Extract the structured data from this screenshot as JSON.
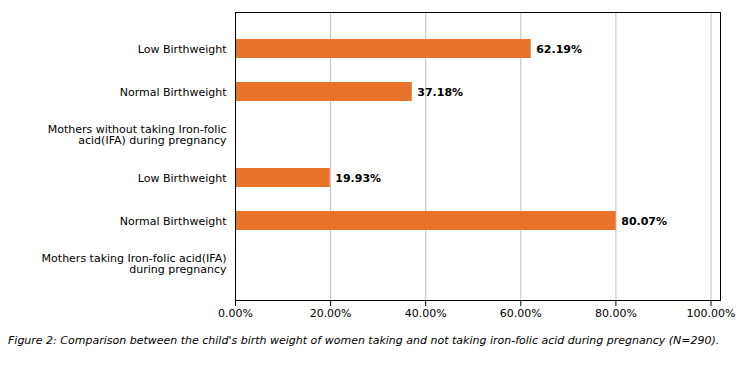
{
  "chart_data": {
    "type": "bar",
    "orientation": "horizontal",
    "caption": "Figure 2: Comparison between the child's birth weight of women taking and not taking iron-folic acid during pregnancy (N=290).",
    "categories": [
      "Mothers taking Iron-folic acid(IFA)\nduring pregnancy",
      "Normal Birthweight",
      "Low Birthweight",
      "Mothers without taking Iron-folic\nacid(IFA) during pregnancy",
      "Normal Birthweight",
      "Low Birthweight"
    ],
    "values": [
      null,
      80.07,
      19.93,
      null,
      37.18,
      62.19
    ],
    "value_labels": [
      null,
      "80.07%",
      "19.93%",
      null,
      "37.18%",
      "62.19%"
    ],
    "data_labels": true,
    "color": "#E8732A",
    "xlim": [
      0,
      102
    ],
    "xticks": [
      {
        "value": 0,
        "label": "0.00%"
      },
      {
        "value": 20,
        "label": "20.00%"
      },
      {
        "value": 40,
        "label": "40.00%"
      },
      {
        "value": 60,
        "label": "60.00%"
      },
      {
        "value": 80,
        "label": "80.00%"
      },
      {
        "value": 100,
        "label": "100.00%"
      }
    ],
    "grid": true
  }
}
